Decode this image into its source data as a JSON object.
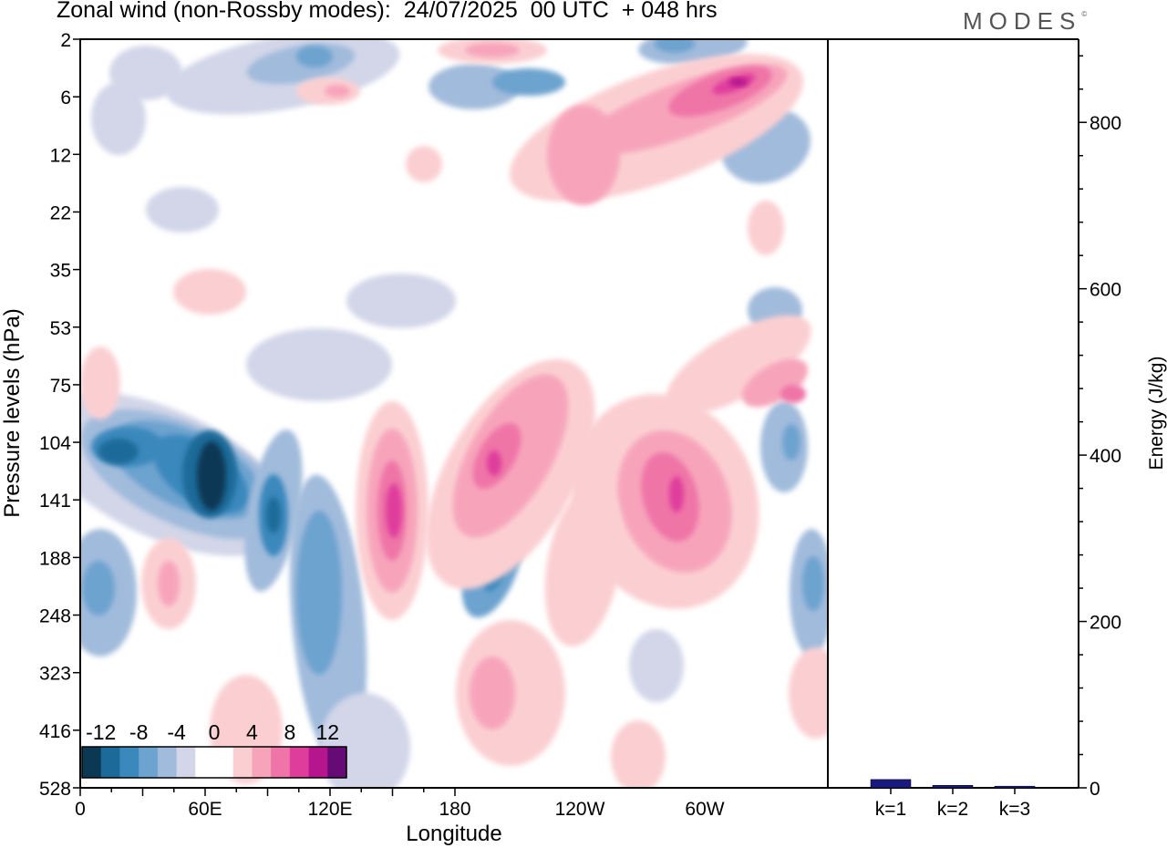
{
  "header": {
    "title": "Zonal wind (non-Rossby modes):  24/07/2025  00 UTC  + 048 hrs",
    "brand": "MODES",
    "brand_mark": "©"
  },
  "chart_data": [
    {
      "type": "heatmap",
      "title": "Zonal wind (non-Rossby modes):  24/07/2025  00 UTC  + 048 hrs",
      "xlabel": "Longitude",
      "ylabel": "Pressure levels (hPa)",
      "x_ticks": [
        "0",
        "60E",
        "120E",
        "180",
        "120W",
        "60W"
      ],
      "y_ticks": [
        "2",
        "6",
        "12",
        "22",
        "35",
        "53",
        "75",
        "104",
        "141",
        "188",
        "248",
        "323",
        "416",
        "528"
      ],
      "colorbar": {
        "labels": [
          "-12",
          "-8",
          "-4",
          "0",
          "4",
          "8",
          "12"
        ],
        "colors": [
          "#0b3954",
          "#1b6a99",
          "#3b88bd",
          "#6da3cf",
          "#a1bbdc",
          "#d2d6e8",
          "#ffffff",
          "#ffffff",
          "#fbcfd2",
          "#f7a4bb",
          "#ef74a7",
          "#df3d9c",
          "#b5168e",
          "#660a75"
        ]
      },
      "features": [
        {
          "lon": 70,
          "level": 141,
          "value": -14
        },
        {
          "lon": 100,
          "level": 141,
          "value": -9
        },
        {
          "lon": 35,
          "level": 104,
          "value": -8
        },
        {
          "lon": 150,
          "level": 141,
          "value": 11
        },
        {
          "lon": 200,
          "level": 141,
          "value": 12
        },
        {
          "lon": 290,
          "level": 141,
          "value": 11
        },
        {
          "lon": 315,
          "level": 6,
          "value": 13
        },
        {
          "lon": 200,
          "level": 2,
          "value": 9
        }
      ]
    },
    {
      "type": "bar",
      "categories": [
        "k=1",
        "k=2",
        "k=3"
      ],
      "values": [
        10,
        3,
        2
      ],
      "ylabel": "Energy (J/kg)",
      "y_ticks": [
        "0",
        "200",
        "400",
        "600",
        "800"
      ],
      "ylim": [
        0,
        900
      ],
      "bar_color": "#1a1a7e"
    }
  ]
}
